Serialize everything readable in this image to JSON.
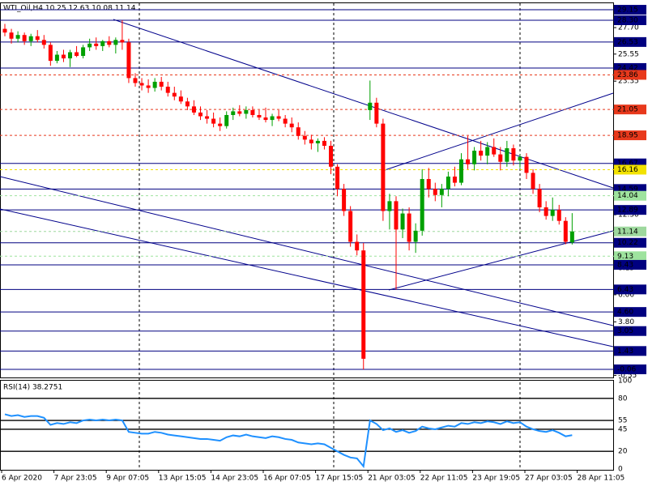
{
  "chart_data": {
    "type": "candlestick",
    "title": "WTI_Oil,H4  10.25 12.63 10.08 11.14",
    "ylim": [
      -0.72,
      29.68
    ],
    "yticks": [
      {
        "value": 27.7,
        "label": "27.70"
      },
      25.55,
      23.35,
      {
        "value": 12.5,
        "label": "12.50"
      },
      8.15,
      {
        "value": 6,
        "label": "6.00"
      },
      {
        "value": 3.8,
        "label": "3.80"
      },
      -0.55
    ],
    "levels": [
      {
        "value": 29.15,
        "label": "29.15",
        "color": "#000080",
        "dash": false
      },
      {
        "value": 28.3,
        "label": "28.30",
        "color": "#000080",
        "dash": false
      },
      {
        "value": 26.53,
        "label": "26.53",
        "color": "#000080",
        "dash": false
      },
      {
        "value": 24.42,
        "label": "24.42",
        "color": "#000080",
        "dash": false
      },
      {
        "value": 23.86,
        "label": "23.86",
        "color": "#e8391c",
        "dash": true
      },
      {
        "value": 21.05,
        "label": "21.05",
        "color": "#e8391c",
        "dash": true
      },
      {
        "value": 18.95,
        "label": "18.95",
        "color": "#e8391c",
        "dash": true
      },
      {
        "value": 16.67,
        "label": "16.67",
        "color": "#000080",
        "dash": false
      },
      {
        "value": 16.16,
        "label": "16.16",
        "color": "#f2e200",
        "dash": true
      },
      {
        "value": 14.59,
        "label": "14.59",
        "color": "#000080",
        "dash": false
      },
      {
        "value": 14.04,
        "label": "14.04",
        "color": "#9ee39e",
        "dash": true
      },
      {
        "value": 12.89,
        "label": "12.89",
        "color": "#000080",
        "dash": false
      },
      {
        "value": 11.14,
        "label": "11.14",
        "color": "#9ed89e",
        "dash": true
      },
      {
        "value": 10.22,
        "label": "10.22",
        "color": "#000080",
        "dash": false
      },
      {
        "value": 9.13,
        "label": "9.13",
        "color": "#9ee39e",
        "dash": true
      },
      {
        "value": 8.43,
        "label": "8.43",
        "color": "#000080",
        "dash": false
      },
      {
        "value": 6.43,
        "label": "6.43",
        "color": "#000080",
        "dash": false
      },
      {
        "value": 4.6,
        "label": "4.60",
        "color": "#000080",
        "dash": false
      },
      {
        "value": 3.05,
        "label": "3.05",
        "color": "#000080",
        "dash": false
      },
      {
        "value": 1.43,
        "label": "1.43",
        "color": "#000080",
        "dash": false
      },
      {
        "value": -0.06,
        "label": "-0.06",
        "color": "#000080",
        "dash": false
      }
    ],
    "up_color": "#00a000",
    "down_color": "#ff0000",
    "xlabels": [
      "6 Apr 2020",
      "7 Apr 23:05",
      "9 Apr 07:05",
      "13 Apr 15:05",
      "14 Apr 23:05",
      "16 Apr 07:05",
      "17 Apr 15:05",
      "21 Apr 03:05",
      "22 Apr 11:05",
      "23 Apr 19:05",
      "27 Apr 03:05",
      "28 Apr 11:05"
    ],
    "ohlc": [
      [
        27.6,
        28.0,
        27.0,
        27.3
      ],
      [
        27.3,
        27.6,
        26.4,
        26.8
      ],
      [
        26.8,
        27.4,
        26.5,
        27.1
      ],
      [
        27.1,
        27.3,
        26.3,
        26.6
      ],
      [
        26.6,
        27.2,
        26.2,
        27.0
      ],
      [
        27.0,
        27.5,
        26.5,
        26.7
      ],
      [
        26.7,
        27.1,
        26.0,
        26.3
      ],
      [
        26.3,
        26.5,
        24.6,
        25.0
      ],
      [
        25.0,
        25.8,
        24.8,
        25.5
      ],
      [
        25.5,
        25.9,
        24.9,
        25.2
      ],
      [
        25.2,
        25.9,
        24.5,
        25.7
      ],
      [
        25.7,
        26.2,
        25.3,
        25.4
      ],
      [
        25.4,
        26.3,
        25.2,
        26.1
      ],
      [
        26.1,
        26.8,
        25.8,
        26.4
      ],
      [
        26.4,
        26.9,
        25.9,
        26.2
      ],
      [
        26.2,
        26.7,
        25.8,
        26.6
      ],
      [
        26.6,
        27.0,
        26.1,
        26.3
      ],
      [
        26.3,
        26.9,
        25.6,
        26.7
      ],
      [
        26.7,
        28.3,
        25.9,
        26.5
      ],
      [
        26.5,
        26.8,
        23.2,
        23.6
      ],
      [
        23.6,
        24.0,
        22.9,
        23.2
      ],
      [
        23.2,
        23.6,
        22.6,
        23.0
      ],
      [
        23.0,
        23.5,
        22.4,
        22.8
      ],
      [
        22.8,
        23.6,
        22.5,
        23.3
      ],
      [
        23.3,
        23.7,
        22.6,
        22.9
      ],
      [
        22.9,
        23.3,
        22.1,
        22.4
      ],
      [
        22.4,
        22.9,
        21.8,
        22.1
      ],
      [
        22.1,
        22.6,
        21.5,
        21.7
      ],
      [
        21.7,
        22.0,
        21.0,
        21.3
      ],
      [
        21.3,
        21.8,
        20.6,
        20.8
      ],
      [
        20.8,
        21.3,
        20.2,
        20.5
      ],
      [
        20.5,
        21.0,
        19.9,
        20.3
      ],
      [
        20.3,
        20.8,
        19.6,
        19.9
      ],
      [
        19.9,
        20.4,
        19.3,
        19.7
      ],
      [
        19.7,
        20.9,
        19.5,
        20.6
      ],
      [
        20.6,
        21.2,
        20.2,
        20.9
      ],
      [
        20.9,
        21.4,
        20.5,
        20.7
      ],
      [
        20.7,
        21.3,
        20.3,
        21.0
      ],
      [
        21.0,
        21.3,
        20.4,
        20.6
      ],
      [
        20.6,
        21.0,
        20.2,
        20.4
      ],
      [
        20.4,
        21.2,
        20.0,
        20.2
      ],
      [
        20.2,
        20.7,
        19.7,
        20.5
      ],
      [
        20.5,
        21.0,
        20.1,
        20.3
      ],
      [
        20.3,
        20.6,
        19.6,
        19.9
      ],
      [
        19.9,
        20.4,
        19.2,
        19.6
      ],
      [
        19.6,
        20.0,
        18.6,
        18.9
      ],
      [
        18.9,
        19.3,
        18.2,
        18.6
      ],
      [
        18.6,
        19.0,
        17.8,
        18.3
      ],
      [
        18.3,
        18.7,
        17.6,
        18.5
      ],
      [
        18.5,
        18.8,
        17.8,
        18.1
      ],
      [
        18.1,
        18.5,
        15.8,
        16.4
      ],
      [
        16.4,
        16.6,
        14.0,
        14.6
      ],
      [
        14.6,
        15.0,
        12.4,
        12.8
      ],
      [
        12.8,
        13.2,
        9.9,
        10.3
      ],
      [
        10.3,
        10.9,
        9.2,
        9.6
      ],
      [
        9.6,
        10.2,
        -0.06,
        0.8
      ],
      [
        21.0,
        23.4,
        20.2,
        21.6
      ],
      [
        21.6,
        22.0,
        19.6,
        19.9
      ],
      [
        19.9,
        20.3,
        12.0,
        12.8
      ],
      [
        12.8,
        14.2,
        11.3,
        13.6
      ],
      [
        13.6,
        14.0,
        6.43,
        11.3
      ],
      [
        11.3,
        13.0,
        10.6,
        12.6
      ],
      [
        12.6,
        13.1,
        9.6,
        10.3
      ],
      [
        10.3,
        11.8,
        9.4,
        11.2
      ],
      [
        11.2,
        16.2,
        10.8,
        15.4
      ],
      [
        15.4,
        16.3,
        13.9,
        14.6
      ],
      [
        14.6,
        15.1,
        13.6,
        14.1
      ],
      [
        14.1,
        15.0,
        13.1,
        14.6
      ],
      [
        14.6,
        16.0,
        14.0,
        15.6
      ],
      [
        15.6,
        16.4,
        14.8,
        15.1
      ],
      [
        15.1,
        17.5,
        14.9,
        17.0
      ],
      [
        17.0,
        18.9,
        16.2,
        16.6
      ],
      [
        16.6,
        18.0,
        16.1,
        17.7
      ],
      [
        17.7,
        18.5,
        16.9,
        17.3
      ],
      [
        17.3,
        18.4,
        16.6,
        18.0
      ],
      [
        18.0,
        18.7,
        17.2,
        17.4
      ],
      [
        17.4,
        18.0,
        16.1,
        16.8
      ],
      [
        16.8,
        18.5,
        16.4,
        17.9
      ],
      [
        17.9,
        18.2,
        16.5,
        16.9
      ],
      [
        16.9,
        17.4,
        16.3,
        17.2
      ],
      [
        17.2,
        17.5,
        15.4,
        15.9
      ],
      [
        15.9,
        16.2,
        14.2,
        14.6
      ],
      [
        14.6,
        15.0,
        12.7,
        13.1
      ],
      [
        13.1,
        13.6,
        12.1,
        12.4
      ],
      [
        12.4,
        13.9,
        12.0,
        12.9
      ],
      [
        12.9,
        13.3,
        11.7,
        12.0
      ],
      [
        12.0,
        12.3,
        10.1,
        10.3
      ],
      [
        10.25,
        12.63,
        10.08,
        11.14
      ]
    ],
    "rsi": {
      "title": "RSI(14) 38.2751",
      "color": "#1e90ff",
      "ylim": [
        0,
        100
      ],
      "yticks": [
        100,
        80,
        55,
        45,
        20,
        0
      ],
      "levels": [
        80,
        55,
        45,
        20
      ],
      "values": [
        62,
        60,
        61,
        59,
        60,
        60,
        58,
        50,
        52,
        51,
        53,
        52,
        55,
        56,
        55,
        56,
        55,
        56,
        55,
        42,
        41,
        40,
        40,
        42,
        41,
        39,
        38,
        37,
        36,
        35,
        34,
        34,
        33,
        32,
        36,
        38,
        37,
        39,
        37,
        36,
        35,
        37,
        36,
        34,
        33,
        30,
        29,
        28,
        29,
        28,
        24,
        20,
        16,
        13,
        12,
        3,
        55,
        51,
        44,
        46,
        42,
        44,
        41,
        43,
        48,
        46,
        45,
        47,
        49,
        48,
        52,
        51,
        53,
        52,
        54,
        53,
        51,
        54,
        52,
        53,
        48,
        45,
        43,
        42,
        44,
        41,
        37,
        38.2751
      ]
    }
  }
}
